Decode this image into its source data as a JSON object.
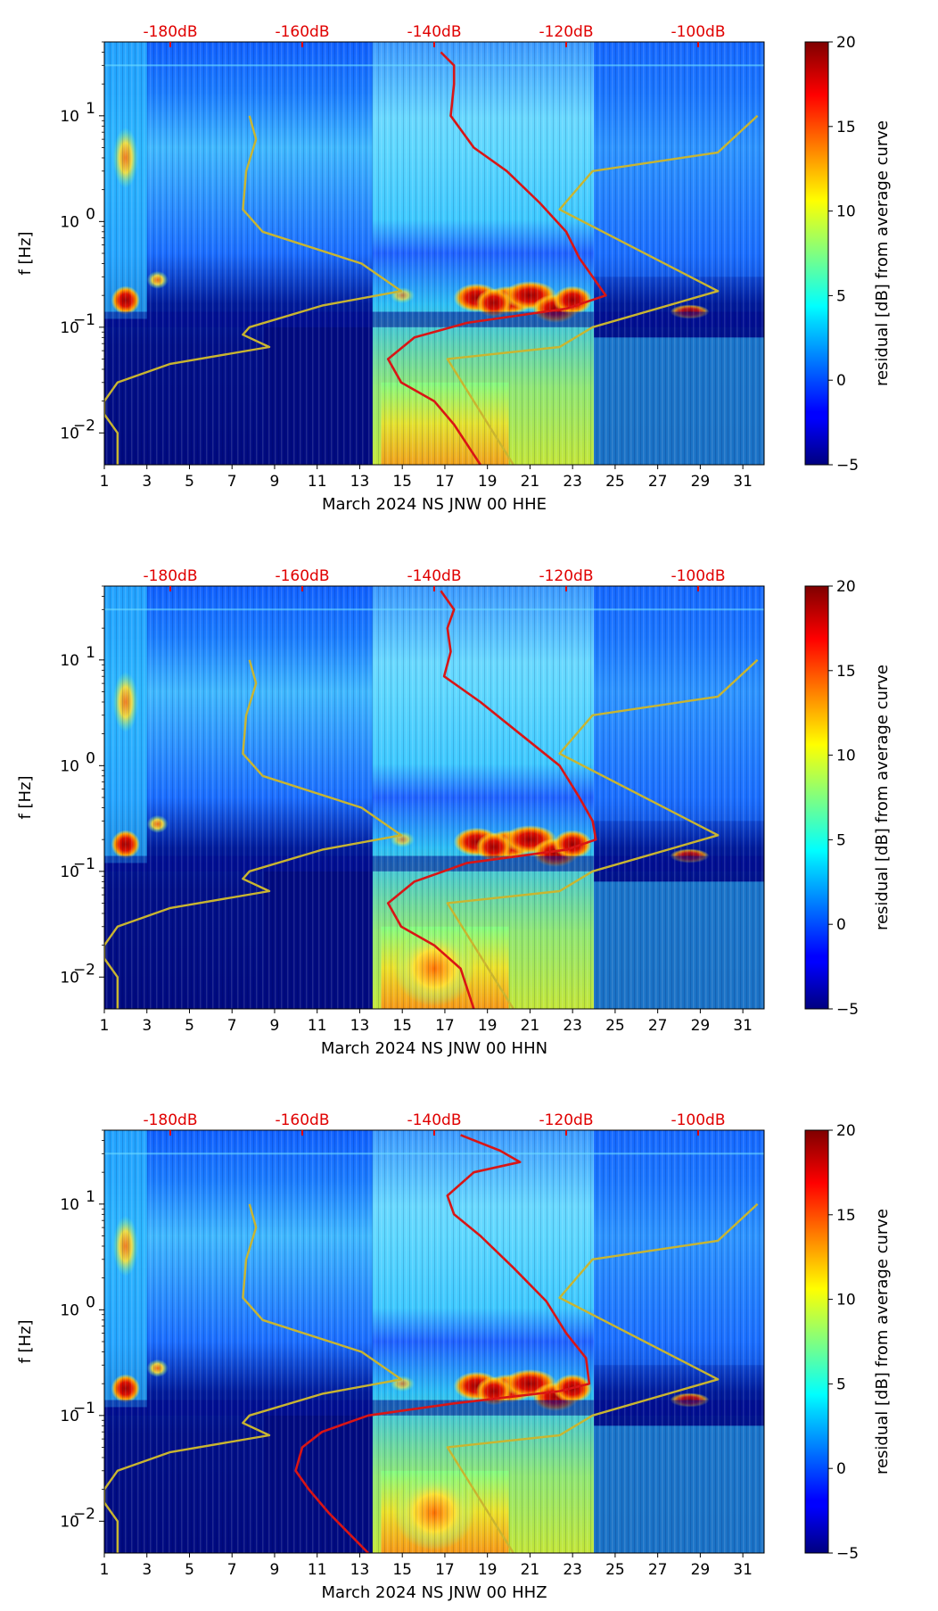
{
  "colors": {
    "residual_curve": "#d91515",
    "model_curve": "#c9b530",
    "db_tick_text": "#e00000"
  },
  "colorbar": {
    "label": "residual [dB] from average curve",
    "ticks": [
      -5,
      0,
      5,
      10,
      15,
      20
    ],
    "range": [
      -5,
      20
    ],
    "colormap": "jet"
  },
  "panels": [
    {
      "id": "hhe",
      "xlabel": "March 2024 NS JNW 00 HHE"
    },
    {
      "id": "hhn",
      "xlabel": "March 2024 NS JNW 00 HHN"
    },
    {
      "id": "hhz",
      "xlabel": "March 2024 NS JNW 00 HHZ"
    }
  ],
  "chart_data": [
    {
      "type": "heatmap",
      "title": "",
      "xlabel": "March 2024 NS JNW 00 HHE",
      "ylabel": "f [Hz]",
      "yscale": "log",
      "xlim": [
        1,
        32
      ],
      "ylim": [
        0.005,
        50
      ],
      "x_ticks": [
        "1",
        "3",
        "5",
        "7",
        "9",
        "11",
        "13",
        "15",
        "17",
        "19",
        "21",
        "23",
        "25",
        "27",
        "29",
        "31"
      ],
      "y_ticks": [
        "10^-2",
        "10^-1",
        "10^0",
        "10^1"
      ],
      "top_axis_ticks": [
        "-180dB",
        "-160dB",
        "-140dB",
        "-120dB",
        "-100dB"
      ],
      "top_axis_db_values": [
        -180,
        -160,
        -140,
        -120,
        -100
      ],
      "colorbar_label": "residual [dB] from average curve",
      "colorbar_range": [
        -5,
        20
      ],
      "series": [
        {
          "name": "median noise curve",
          "color": "#d91515",
          "points": [
            [
              -139,
              40
            ],
            [
              -137,
              30
            ],
            [
              -137,
              20
            ],
            [
              -137.5,
              10
            ],
            [
              -134,
              5
            ],
            [
              -129,
              3
            ],
            [
              -124,
              1.5
            ],
            [
              -120,
              0.8
            ],
            [
              -118,
              0.45
            ],
            [
              -116,
              0.3
            ],
            [
              -114,
              0.2
            ],
            [
              -120,
              0.15
            ],
            [
              -135,
              0.11
            ],
            [
              -143,
              0.08
            ],
            [
              -147,
              0.05
            ],
            [
              -145,
              0.03
            ],
            [
              -140,
              0.02
            ],
            [
              -137,
              0.012
            ],
            [
              -133,
              0.005
            ]
          ]
        },
        {
          "name": "NLNM/NHNM model",
          "color": "#c9b530",
          "points": [
            [
              -168,
              10
            ],
            [
              -167,
              6
            ],
            [
              -168.5,
              3
            ],
            [
              -169,
              1.3
            ],
            [
              -166,
              0.8
            ],
            [
              -151,
              0.4
            ],
            [
              -145,
              0.22
            ],
            [
              -157,
              0.16
            ],
            [
              -168,
              0.1
            ],
            [
              -169,
              0.085
            ],
            [
              -165,
              0.065
            ],
            [
              -180,
              0.045
            ],
            [
              -188,
              0.03
            ],
            [
              -190,
              0.02
            ],
            [
              -190,
              0.015
            ],
            [
              -188,
              0.01
            ],
            [
              -188,
              0.005
            ]
          ]
        },
        {
          "name": "NHNM model",
          "color": "#c9b530",
          "points": [
            [
              -91,
              10
            ],
            [
              -97,
              4.5
            ],
            [
              -116,
              3
            ],
            [
              -121,
              1.3
            ],
            [
              -97,
              0.22
            ],
            [
              -116,
              0.1
            ],
            [
              -121,
              0.065
            ],
            [
              -138,
              0.05
            ],
            [
              -128,
              0.005
            ]
          ]
        }
      ]
    },
    {
      "type": "heatmap",
      "title": "",
      "xlabel": "March 2024 NS JNW 00 HHN",
      "ylabel": "f [Hz]",
      "yscale": "log",
      "xlim": [
        1,
        32
      ],
      "ylim": [
        0.005,
        50
      ],
      "x_ticks": [
        "1",
        "3",
        "5",
        "7",
        "9",
        "11",
        "13",
        "15",
        "17",
        "19",
        "21",
        "23",
        "25",
        "27",
        "29",
        "31"
      ],
      "y_ticks": [
        "10^-2",
        "10^-1",
        "10^0",
        "10^1"
      ],
      "top_axis_ticks": [
        "-180dB",
        "-160dB",
        "-140dB",
        "-120dB",
        "-100dB"
      ],
      "top_axis_db_values": [
        -180,
        -160,
        -140,
        -120,
        -100
      ],
      "colorbar_label": "residual [dB] from average curve",
      "colorbar_range": [
        -5,
        20
      ],
      "series": [
        {
          "name": "median noise curve",
          "color": "#d91515",
          "points": [
            [
              -139,
              45
            ],
            [
              -137,
              30
            ],
            [
              -138,
              20
            ],
            [
              -137.5,
              12
            ],
            [
              -138.5,
              7
            ],
            [
              -133,
              4
            ],
            [
              -127,
              2
            ],
            [
              -121,
              1
            ],
            [
              -118,
              0.5
            ],
            [
              -116,
              0.3
            ],
            [
              -115.5,
              0.2
            ],
            [
              -120,
              0.16
            ],
            [
              -135,
              0.12
            ],
            [
              -143,
              0.08
            ],
            [
              -147,
              0.05
            ],
            [
              -145,
              0.03
            ],
            [
              -140,
              0.02
            ],
            [
              -136,
              0.012
            ],
            [
              -134,
              0.005
            ]
          ]
        },
        {
          "name": "NLNM/NHNM model",
          "color": "#c9b530",
          "points": [
            [
              -168,
              10
            ],
            [
              -167,
              6
            ],
            [
              -168.5,
              3
            ],
            [
              -169,
              1.3
            ],
            [
              -166,
              0.8
            ],
            [
              -151,
              0.4
            ],
            [
              -145,
              0.22
            ],
            [
              -157,
              0.16
            ],
            [
              -168,
              0.1
            ],
            [
              -169,
              0.085
            ],
            [
              -165,
              0.065
            ],
            [
              -180,
              0.045
            ],
            [
              -188,
              0.03
            ],
            [
              -190,
              0.02
            ],
            [
              -190,
              0.015
            ],
            [
              -188,
              0.01
            ],
            [
              -188,
              0.005
            ]
          ]
        },
        {
          "name": "NHNM model",
          "color": "#c9b530",
          "points": [
            [
              -91,
              10
            ],
            [
              -97,
              4.5
            ],
            [
              -116,
              3
            ],
            [
              -121,
              1.3
            ],
            [
              -97,
              0.22
            ],
            [
              -116,
              0.1
            ],
            [
              -121,
              0.065
            ],
            [
              -138,
              0.05
            ],
            [
              -128,
              0.005
            ]
          ]
        }
      ]
    },
    {
      "type": "heatmap",
      "title": "",
      "xlabel": "March 2024 NS JNW 00 HHZ",
      "ylabel": "f [Hz]",
      "yscale": "log",
      "xlim": [
        1,
        32
      ],
      "ylim": [
        0.005,
        50
      ],
      "x_ticks": [
        "1",
        "3",
        "5",
        "7",
        "9",
        "11",
        "13",
        "15",
        "17",
        "19",
        "21",
        "23",
        "25",
        "27",
        "29",
        "31"
      ],
      "y_ticks": [
        "10^-2",
        "10^-1",
        "10^0",
        "10^1"
      ],
      "top_axis_ticks": [
        "-180dB",
        "-160dB",
        "-140dB",
        "-120dB",
        "-100dB"
      ],
      "top_axis_db_values": [
        -180,
        -160,
        -140,
        -120,
        -100
      ],
      "colorbar_label": "residual [dB] from average curve",
      "colorbar_range": [
        -5,
        20
      ],
      "series": [
        {
          "name": "median noise curve",
          "color": "#d91515",
          "points": [
            [
              -136,
              45
            ],
            [
              -130,
              32
            ],
            [
              -127,
              25
            ],
            [
              -134,
              20
            ],
            [
              -138,
              12
            ],
            [
              -137,
              8
            ],
            [
              -133,
              5
            ],
            [
              -128,
              2.5
            ],
            [
              -123,
              1.2
            ],
            [
              -120,
              0.6
            ],
            [
              -117,
              0.35
            ],
            [
              -116.5,
              0.2
            ],
            [
              -121,
              0.17
            ],
            [
              -137,
              0.13
            ],
            [
              -150,
              0.1
            ],
            [
              -157,
              0.07
            ],
            [
              -160,
              0.05
            ],
            [
              -161,
              0.03
            ],
            [
              -159,
              0.02
            ],
            [
              -156,
              0.012
            ],
            [
              -150,
              0.005
            ]
          ]
        },
        {
          "name": "NLNM/NHNM model",
          "color": "#c9b530",
          "points": [
            [
              -168,
              10
            ],
            [
              -167,
              6
            ],
            [
              -168.5,
              3
            ],
            [
              -169,
              1.3
            ],
            [
              -166,
              0.8
            ],
            [
              -151,
              0.4
            ],
            [
              -145,
              0.22
            ],
            [
              -157,
              0.16
            ],
            [
              -168,
              0.1
            ],
            [
              -169,
              0.085
            ],
            [
              -165,
              0.065
            ],
            [
              -180,
              0.045
            ],
            [
              -188,
              0.03
            ],
            [
              -190,
              0.02
            ],
            [
              -190,
              0.015
            ],
            [
              -188,
              0.01
            ],
            [
              -188,
              0.005
            ]
          ]
        },
        {
          "name": "NHNM model",
          "color": "#c9b530",
          "points": [
            [
              -91,
              10
            ],
            [
              -97,
              4.5
            ],
            [
              -116,
              3
            ],
            [
              -121,
              1.3
            ],
            [
              -97,
              0.22
            ],
            [
              -116,
              0.1
            ],
            [
              -121,
              0.065
            ],
            [
              -138,
              0.05
            ],
            [
              -128,
              0.005
            ]
          ]
        }
      ]
    }
  ]
}
